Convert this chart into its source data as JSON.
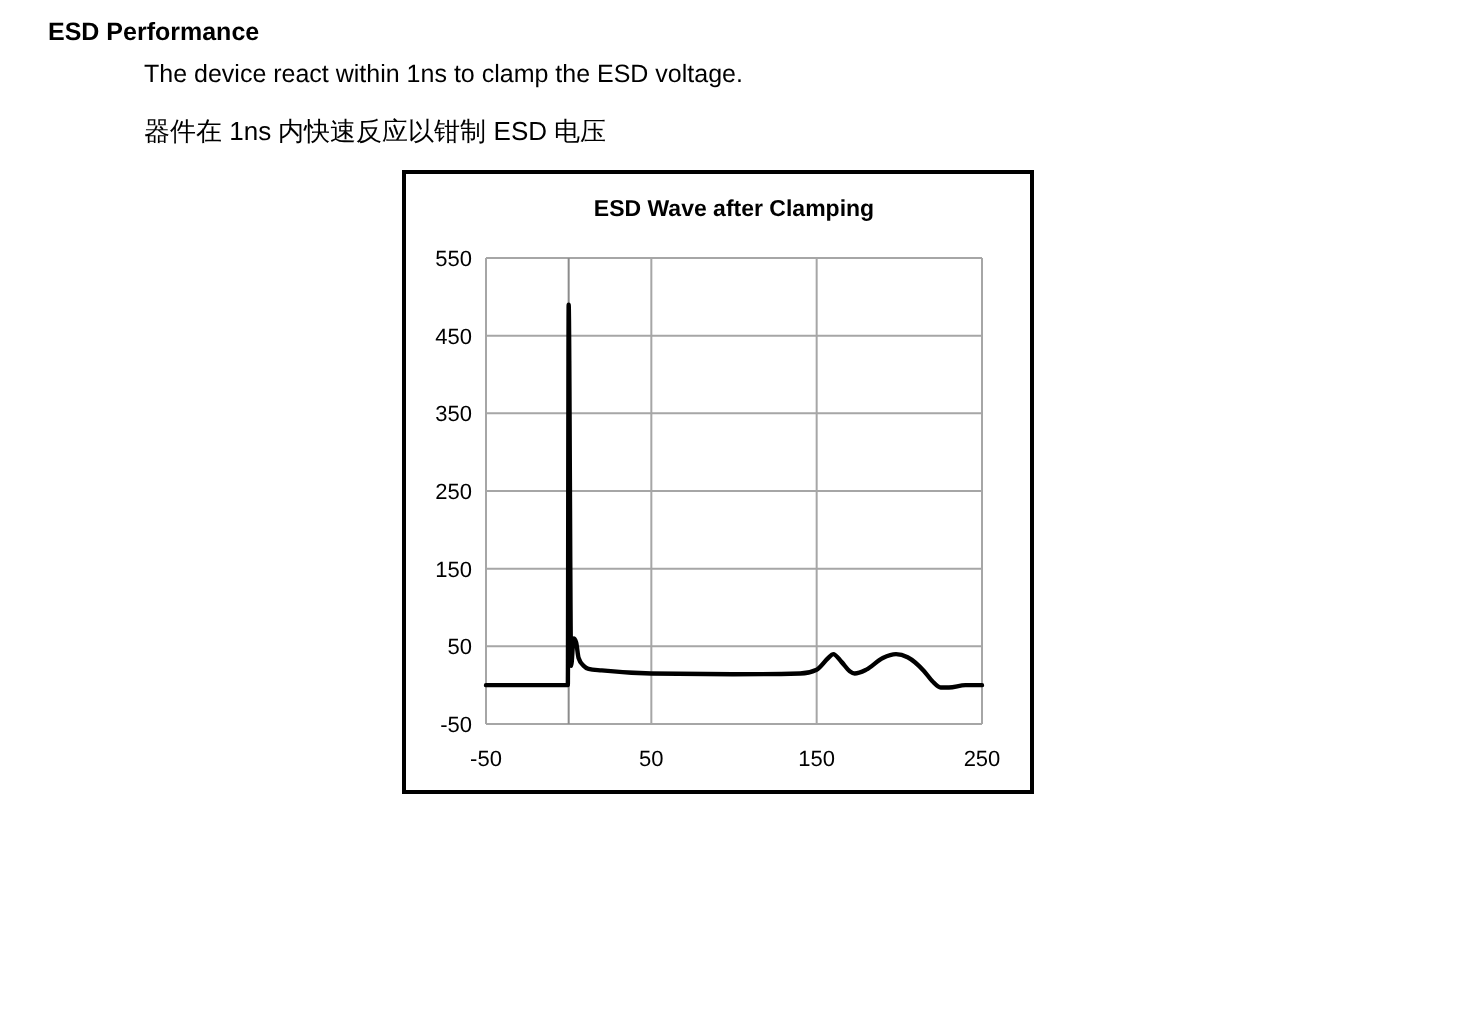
{
  "chart_data": {
    "type": "line",
    "title": "ESD Wave after Clamping",
    "annotations": [
      "ESD Performance",
      "The device react within 1ns to clamp the ESD voltage.",
      "器件在 1ns 内快速反应以钳制 ESD 电压"
    ],
    "x": [
      -50,
      -0.5,
      0,
      1.5,
      3,
      4.5,
      6,
      9,
      12,
      20,
      50,
      100,
      140,
      150,
      157,
      160,
      165,
      170,
      173,
      180,
      190,
      198,
      205,
      215,
      220,
      225,
      230,
      240,
      250
    ],
    "series": [
      {
        "color": "#000000",
        "values": [
          0,
          0,
          490,
          25,
          60,
          55,
          35,
          25,
          21,
          19,
          15,
          14,
          15,
          20,
          35,
          40,
          30,
          18,
          15,
          20,
          35,
          40,
          36,
          18,
          5,
          -3,
          -3,
          0,
          0
        ]
      }
    ],
    "xlim": [
      -50,
      250
    ],
    "xticks": [
      -50,
      50,
      150,
      250
    ],
    "ylim": [
      -50,
      550
    ],
    "yticks": [
      -50,
      50,
      150,
      250,
      350,
      450,
      550
    ],
    "ref_lines": [
      {
        "axis": "x",
        "value": 0,
        "color": "#8c8c8c"
      }
    ],
    "grid": true,
    "line_style": "solid",
    "marker": "none"
  }
}
